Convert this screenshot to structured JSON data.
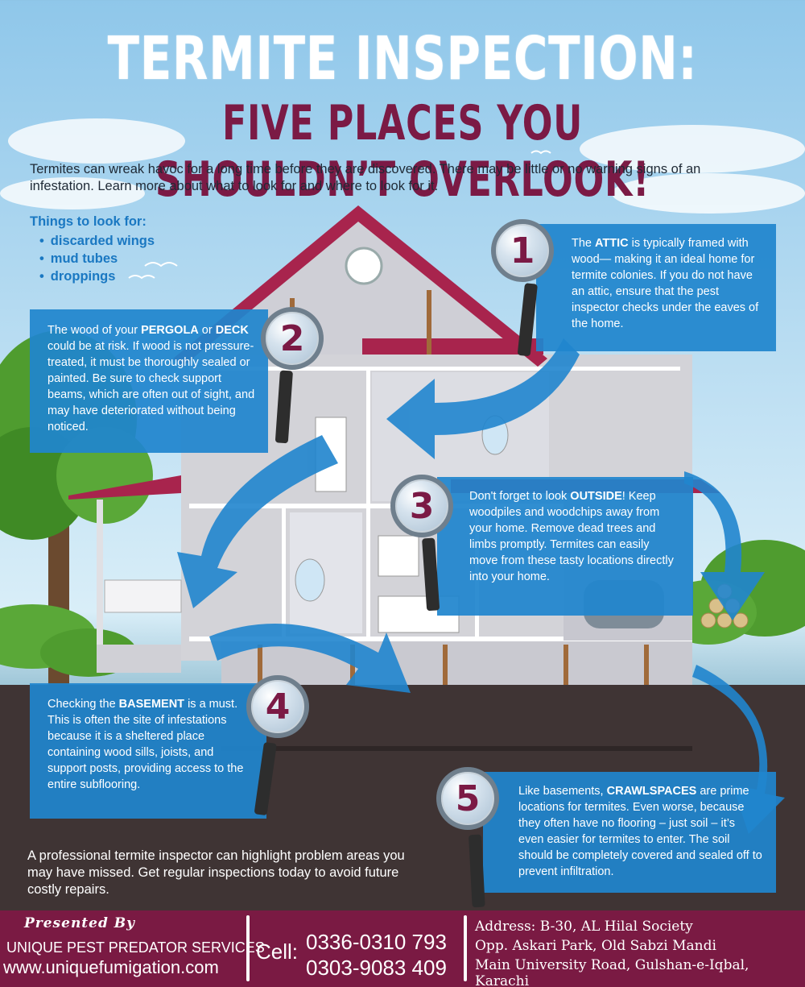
{
  "title": {
    "line1": "TERMITE INSPECTION:",
    "line2": "FIVE PLACES YOU SHOULDN’T OVERLOOK!"
  },
  "intro": "Termites can wreak havoc for a long time before they are discovered. There may be little or no warning signs of an infestation. Learn more about what to look for and where to look for it.",
  "look_for": {
    "heading": "Things to look for:",
    "items": [
      "discarded wings",
      "mud tubes",
      "droppings"
    ]
  },
  "places": [
    {
      "number": "1",
      "pre": "The ",
      "keyword": "ATTIC",
      "post": " is typically framed with wood— making it an ideal home for termite colonies. If you do not have an attic, ensure that the pest inspector checks under the eaves of the home."
    },
    {
      "number": "2",
      "pre": "The wood of your ",
      "keyword": "PERGOLA",
      "mid": " or ",
      "keyword2": "DECK",
      "post": " could be at risk. If wood is not pressure-treated, it must be thoroughly sealed or painted. Be sure to check support beams, which are often out of sight, and may have deteriorated without being noticed."
    },
    {
      "number": "3",
      "pre": "Don't forget to look ",
      "keyword": "OUTSIDE",
      "post": "! Keep woodpiles and woodchips away from your home. Remove dead trees and limbs promptly. Termites can easily move from these tasty locations directly into your home."
    },
    {
      "number": "4",
      "pre": "Checking the ",
      "keyword": "BASEMENT",
      "post": " is a must. This is often the site of infestations because it is a sheltered place containing wood sills, joists, and support posts, providing access to the entire subflooring."
    },
    {
      "number": "5",
      "pre": "Like basements, ",
      "keyword": "CRAWLSPACES",
      "post": " are prime locations for termites. Even worse, because they often have no flooring – just soil – it’s even easier for termites to enter. The soil should be completely covered and sealed off to prevent infiltration."
    }
  ],
  "closing": "A professional termite inspector can highlight problem areas you may have missed. Get regular inspections today to avoid future costly repairs.",
  "footer": {
    "presented_by": "Presented By",
    "company": "UNIQUE PEST PREDATOR SERVICES",
    "website": "www.uniquefumigation.com",
    "cell_label": "Cell:",
    "phones": [
      "0336-0310 793",
      "0303-9083 409"
    ],
    "address": [
      "Address: B-30, AL Hilal Society",
      "Opp. Askari Park, Old Sabzi Mandi",
      "Main University Road, Gulshan-e-Iqbal, Karachi"
    ]
  },
  "colors": {
    "accent_blue": "#2085ce",
    "brand_maroon": "#7a1a43",
    "sky": "#8fc7ea",
    "ground": "#3f3434"
  }
}
